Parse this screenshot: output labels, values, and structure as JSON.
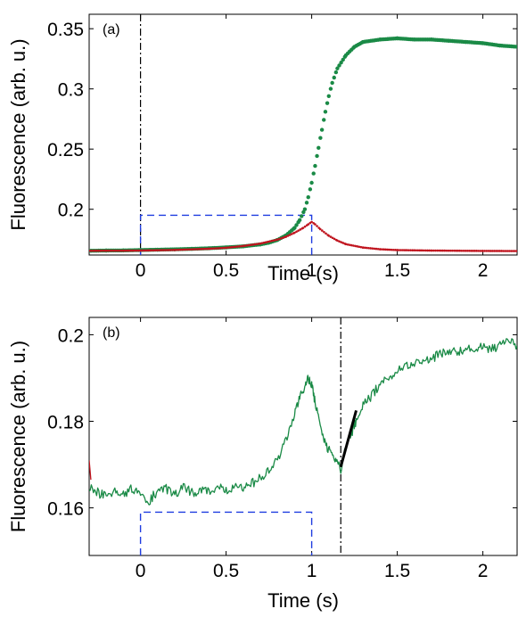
{
  "chart_data": [
    {
      "type": "scatter",
      "panel_label": "(a)",
      "xlabel": "Time  (s)",
      "ylabel": "Fluorescence (arb. u.)",
      "xlim": [
        -0.3,
        2.2
      ],
      "ylim": [
        0.162,
        0.362
      ],
      "xticks": [
        0,
        0.5,
        1,
        1.5,
        2
      ],
      "xtick_labels": [
        "0",
        "0.5",
        "1",
        "1.5",
        "2"
      ],
      "yticks": [
        0.2,
        0.25,
        0.3,
        0.35
      ],
      "ytick_labels": [
        "0.2",
        "0.25",
        "0.3",
        "0.35"
      ],
      "grid": false,
      "colors": {
        "series_green": "#1a8a46",
        "series_red": "#c0141e",
        "guide_blue": "#1f3de0",
        "guide_black": "#000000"
      },
      "series": [
        {
          "color_key": "series_green",
          "marker": "dot",
          "points": [
            [
              -0.3,
              0.1655
            ],
            [
              -0.2,
              0.1657
            ],
            [
              -0.1,
              0.1658
            ],
            [
              0,
              0.1661
            ],
            [
              0.1,
              0.1664
            ],
            [
              0.2,
              0.1667
            ],
            [
              0.3,
              0.1671
            ],
            [
              0.4,
              0.1676
            ],
            [
              0.5,
              0.1683
            ],
            [
              0.6,
              0.1692
            ],
            [
              0.7,
              0.1708
            ],
            [
              0.75,
              0.1722
            ],
            [
              0.8,
              0.1745
            ],
            [
              0.85,
              0.1783
            ],
            [
              0.9,
              0.1845
            ],
            [
              0.93,
              0.191
            ],
            [
              0.96,
              0.2
            ],
            [
              0.98,
              0.21
            ],
            [
              1.0,
              0.222
            ],
            [
              1.02,
              0.236
            ],
            [
              1.04,
              0.251
            ],
            [
              1.06,
              0.266
            ],
            [
              1.08,
              0.281
            ],
            [
              1.1,
              0.294
            ],
            [
              1.12,
              0.305
            ],
            [
              1.15,
              0.317
            ],
            [
              1.2,
              0.328
            ],
            [
              1.25,
              0.335
            ],
            [
              1.3,
              0.339
            ],
            [
              1.4,
              0.341
            ],
            [
              1.5,
              0.342
            ],
            [
              1.6,
              0.341
            ],
            [
              1.7,
              0.341
            ],
            [
              1.8,
              0.34
            ],
            [
              1.9,
              0.339
            ],
            [
              2.0,
              0.338
            ],
            [
              2.1,
              0.336
            ],
            [
              2.2,
              0.335
            ]
          ]
        },
        {
          "color_key": "series_red",
          "marker": "small-dot",
          "points": [
            [
              -0.3,
              0.1655
            ],
            [
              -0.2,
              0.1656
            ],
            [
              -0.1,
              0.1656
            ],
            [
              0,
              0.1657
            ],
            [
              0.2,
              0.1662
            ],
            [
              0.4,
              0.1672
            ],
            [
              0.5,
              0.168
            ],
            [
              0.6,
              0.1695
            ],
            [
              0.7,
              0.1715
            ],
            [
              0.8,
              0.1748
            ],
            [
              0.85,
              0.1772
            ],
            [
              0.9,
              0.1805
            ],
            [
              0.95,
              0.1845
            ],
            [
              0.98,
              0.1875
            ],
            [
              1.0,
              0.1895
            ],
            [
              1.02,
              0.1875
            ],
            [
              1.05,
              0.1835
            ],
            [
              1.1,
              0.178
            ],
            [
              1.15,
              0.174
            ],
            [
              1.2,
              0.171
            ],
            [
              1.3,
              0.1682
            ],
            [
              1.4,
              0.1668
            ],
            [
              1.5,
              0.1661
            ],
            [
              1.7,
              0.1657
            ],
            [
              2.0,
              0.1654
            ],
            [
              2.2,
              0.1653
            ]
          ]
        }
      ],
      "guides": [
        {
          "kind": "vline",
          "x": 0,
          "style": "dashdot",
          "color_key": "guide_black"
        },
        {
          "kind": "dashed-box",
          "x0": 0,
          "x1": 1,
          "y_top": 0.195,
          "color_key": "guide_blue"
        }
      ]
    },
    {
      "type": "line",
      "panel_label": "(b)",
      "xlabel": "Time  (s)",
      "ylabel": "Fluorescence (arb. u.)",
      "xlim": [
        -0.3,
        2.2
      ],
      "ylim": [
        0.149,
        0.204
      ],
      "xticks": [
        0,
        0.5,
        1,
        1.5,
        2
      ],
      "xtick_labels": [
        "0",
        "0.5",
        "1",
        "1.5",
        "2"
      ],
      "yticks": [
        0.16,
        0.18,
        0.2
      ],
      "ytick_labels": [
        "0.16",
        "0.18",
        "0.2"
      ],
      "grid": false,
      "colors": {
        "series_green": "#1a8a46",
        "series_red": "#c0141e",
        "guide_blue": "#1f3de0",
        "guide_black": "#000000",
        "fit_line": "#000000"
      },
      "series": [
        {
          "color_key": "series_green",
          "marker": "none",
          "points": [
            [
              -0.3,
              0.165
            ],
            [
              -0.25,
              0.1635
            ],
            [
              -0.2,
              0.1628
            ],
            [
              -0.15,
              0.164
            ],
            [
              -0.1,
              0.1632
            ],
            [
              -0.05,
              0.1645
            ],
            [
              0,
              0.1636
            ],
            [
              0.05,
              0.1615
            ],
            [
              0.1,
              0.164
            ],
            [
              0.15,
              0.1645
            ],
            [
              0.2,
              0.1632
            ],
            [
              0.25,
              0.1648
            ],
            [
              0.3,
              0.1635
            ],
            [
              0.35,
              0.1642
            ],
            [
              0.4,
              0.1638
            ],
            [
              0.45,
              0.1648
            ],
            [
              0.5,
              0.1637
            ],
            [
              0.55,
              0.165
            ],
            [
              0.6,
              0.1642
            ],
            [
              0.65,
              0.1656
            ],
            [
              0.7,
              0.1668
            ],
            [
              0.75,
              0.1685
            ],
            [
              0.8,
              0.171
            ],
            [
              0.85,
              0.1755
            ],
            [
              0.9,
              0.1815
            ],
            [
              0.93,
              0.1855
            ],
            [
              0.96,
              0.188
            ],
            [
              0.98,
              0.1898
            ],
            [
              1.0,
              0.1885
            ],
            [
              1.02,
              0.1845
            ],
            [
              1.05,
              0.179
            ],
            [
              1.08,
              0.175
            ],
            [
              1.11,
              0.1725
            ],
            [
              1.14,
              0.1708
            ],
            [
              1.17,
              0.169
            ],
            [
              1.2,
              0.174
            ],
            [
              1.23,
              0.177
            ],
            [
              1.26,
              0.18
            ],
            [
              1.3,
              0.1835
            ],
            [
              1.35,
              0.186
            ],
            [
              1.4,
              0.1885
            ],
            [
              1.45,
              0.1905
            ],
            [
              1.5,
              0.1915
            ],
            [
              1.55,
              0.1925
            ],
            [
              1.6,
              0.193
            ],
            [
              1.65,
              0.1945
            ],
            [
              1.7,
              0.1945
            ],
            [
              1.75,
              0.1955
            ],
            [
              1.8,
              0.1958
            ],
            [
              1.85,
              0.1962
            ],
            [
              1.9,
              0.1965
            ],
            [
              1.95,
              0.1968
            ],
            [
              2.0,
              0.1972
            ],
            [
              2.05,
              0.1965
            ],
            [
              2.1,
              0.1978
            ],
            [
              2.15,
              0.1985
            ],
            [
              2.2,
              0.1975
            ]
          ]
        },
        {
          "color_key": "series_red",
          "marker": "none",
          "points": [
            [
              -0.3,
              0.171
            ],
            [
              -0.29,
              0.1665
            ]
          ]
        },
        {
          "color_key": "fit_line",
          "marker": "none",
          "width": 3,
          "points": [
            [
              1.17,
              0.1695
            ],
            [
              1.26,
              0.1825
            ]
          ]
        }
      ],
      "guides": [
        {
          "kind": "vline",
          "x": 1.17,
          "style": "dashdot",
          "color_key": "guide_black"
        },
        {
          "kind": "dashed-box",
          "x0": 0,
          "x1": 1,
          "y_top": 0.159,
          "color_key": "guide_blue"
        }
      ]
    }
  ]
}
